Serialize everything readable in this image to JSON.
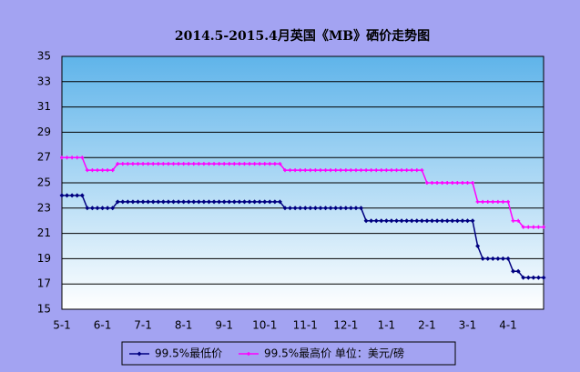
{
  "chart_data": {
    "type": "line",
    "title": "2014.5-2015.4月英国《MB》硒价走势图",
    "categories": [
      "5-1",
      null,
      null,
      null,
      null,
      null,
      null,
      null,
      "6-1",
      null,
      null,
      null,
      null,
      null,
      null,
      null,
      "7-1",
      null,
      null,
      null,
      null,
      null,
      null,
      null,
      "8-1",
      null,
      null,
      null,
      null,
      null,
      null,
      null,
      "9-1",
      null,
      null,
      null,
      null,
      null,
      null,
      null,
      "10-1",
      null,
      null,
      null,
      null,
      null,
      null,
      null,
      "11-1",
      null,
      null,
      null,
      null,
      null,
      null,
      null,
      "12-1",
      null,
      null,
      null,
      null,
      null,
      null,
      null,
      "1-1",
      null,
      null,
      null,
      null,
      null,
      null,
      null,
      "2-1",
      null,
      null,
      null,
      null,
      null,
      null,
      null,
      "3-1",
      null,
      null,
      null,
      null,
      null,
      null,
      null,
      "4-1",
      null,
      null,
      null,
      null,
      null,
      null,
      null
    ],
    "series": [
      {
        "name": "99.5%最低价",
        "color": "#000080",
        "values": [
          24,
          24,
          24,
          24,
          24,
          23,
          23,
          23,
          23,
          23,
          23,
          23.5,
          23.5,
          23.5,
          23.5,
          23.5,
          23.5,
          23.5,
          23.5,
          23.5,
          23.5,
          23.5,
          23.5,
          23.5,
          23.5,
          23.5,
          23.5,
          23.5,
          23.5,
          23.5,
          23.5,
          23.5,
          23.5,
          23.5,
          23.5,
          23.5,
          23.5,
          23.5,
          23.5,
          23.5,
          23.5,
          23.5,
          23.5,
          23.5,
          23,
          23,
          23,
          23,
          23,
          23,
          23,
          23,
          23,
          23,
          23,
          23,
          23,
          23,
          23,
          23,
          22,
          22,
          22,
          22,
          22,
          22,
          22,
          22,
          22,
          22,
          22,
          22,
          22,
          22,
          22,
          22,
          22,
          22,
          22,
          22,
          22,
          22,
          20,
          19,
          19,
          19,
          19,
          19,
          19,
          18,
          18,
          17.5,
          17.5,
          17.5,
          17.5,
          17.5
        ]
      },
      {
        "name": "99.5%最高价 单位：美元/磅",
        "color": "#ff00ff",
        "values": [
          27,
          27,
          27,
          27,
          27,
          26,
          26,
          26,
          26,
          26,
          26,
          26.5,
          26.5,
          26.5,
          26.5,
          26.5,
          26.5,
          26.5,
          26.5,
          26.5,
          26.5,
          26.5,
          26.5,
          26.5,
          26.5,
          26.5,
          26.5,
          26.5,
          26.5,
          26.5,
          26.5,
          26.5,
          26.5,
          26.5,
          26.5,
          26.5,
          26.5,
          26.5,
          26.5,
          26.5,
          26.5,
          26.5,
          26.5,
          26.5,
          26,
          26,
          26,
          26,
          26,
          26,
          26,
          26,
          26,
          26,
          26,
          26,
          26,
          26,
          26,
          26,
          26,
          26,
          26,
          26,
          26,
          26,
          26,
          26,
          26,
          26,
          26,
          26,
          25,
          25,
          25,
          25,
          25,
          25,
          25,
          25,
          25,
          25,
          23.5,
          23.5,
          23.5,
          23.5,
          23.5,
          23.5,
          23.5,
          22,
          22,
          21.5,
          21.5,
          21.5,
          21.5,
          21.5
        ]
      }
    ],
    "ylim": [
      15,
      35
    ],
    "yticks": [
      15,
      17,
      19,
      21,
      23,
      25,
      27,
      29,
      31,
      33,
      35
    ],
    "grid": true
  }
}
